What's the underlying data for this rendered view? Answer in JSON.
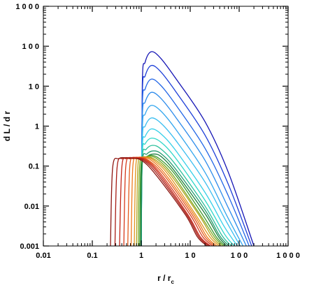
{
  "chart_data": {
    "type": "line",
    "xscale": "log",
    "yscale": "log",
    "xlim": [
      0.01,
      1000
    ],
    "ylim": [
      0.001,
      1000
    ],
    "xticks": [
      {
        "value": 0.01,
        "label": "0.01"
      },
      {
        "value": 0.1,
        "label": "0.1"
      },
      {
        "value": 1,
        "label": "1"
      },
      {
        "value": 10,
        "label": "1 0"
      },
      {
        "value": 100,
        "label": "1 0 0"
      },
      {
        "value": 1000,
        "label": "1 0 0 0"
      }
    ],
    "yticks": [
      {
        "value": 0.001,
        "label": "0.001"
      },
      {
        "value": 0.01,
        "label": "0.01"
      },
      {
        "value": 0.1,
        "label": "0.1"
      },
      {
        "value": 1,
        "label": "1"
      },
      {
        "value": 10,
        "label": "1 0"
      },
      {
        "value": 100,
        "label": "1 0 0"
      },
      {
        "value": 1000,
        "label": "1 0 0 0"
      }
    ],
    "xlabel": "r / r",
    "xlabel_subscript": "c",
    "ylabel": "d L / d r",
    "grid": false,
    "legend": "none",
    "series": [
      {
        "color": "#1515b5",
        "values": [
          [
            1.0,
            0.001
          ],
          [
            1.05,
            11.0
          ],
          [
            1.2,
            40.0
          ],
          [
            1.6,
            73.0
          ],
          [
            2.5,
            50.0
          ],
          [
            5,
            16.0
          ],
          [
            20,
            1.3
          ],
          [
            60,
            0.07
          ],
          [
            200,
            0.001
          ]
        ]
      },
      {
        "color": "#1c3ed8",
        "values": [
          [
            1.0,
            0.001
          ],
          [
            1.05,
            6.0
          ],
          [
            1.2,
            18.0
          ],
          [
            1.6,
            33.0
          ],
          [
            2.5,
            23.0
          ],
          [
            5,
            7.5
          ],
          [
            20,
            0.6
          ],
          [
            60,
            0.035
          ],
          [
            180,
            0.001
          ]
        ]
      },
      {
        "color": "#2266e6",
        "values": [
          [
            1.0,
            0.001
          ],
          [
            1.05,
            3.0
          ],
          [
            1.2,
            8.5
          ],
          [
            1.6,
            15.0
          ],
          [
            2.5,
            10.5
          ],
          [
            5,
            3.5
          ],
          [
            20,
            0.28
          ],
          [
            60,
            0.018
          ],
          [
            160,
            0.001
          ]
        ]
      },
      {
        "color": "#2b8aeb",
        "values": [
          [
            1.0,
            0.001
          ],
          [
            1.05,
            1.5
          ],
          [
            1.2,
            4.0
          ],
          [
            1.6,
            7.0
          ],
          [
            2.5,
            5.0
          ],
          [
            5,
            1.7
          ],
          [
            20,
            0.14
          ],
          [
            60,
            0.009
          ],
          [
            140,
            0.001
          ]
        ]
      },
      {
        "color": "#33a6ee",
        "values": [
          [
            1.0,
            0.001
          ],
          [
            1.05,
            0.8
          ],
          [
            1.2,
            2.0
          ],
          [
            1.6,
            3.3
          ],
          [
            2.5,
            2.4
          ],
          [
            5,
            0.85
          ],
          [
            20,
            0.07
          ],
          [
            55,
            0.006
          ],
          [
            120,
            0.001
          ]
        ]
      },
      {
        "color": "#38bdf0",
        "values": [
          [
            1.0,
            0.001
          ],
          [
            1.05,
            0.45
          ],
          [
            1.2,
            1.0
          ],
          [
            1.6,
            1.6
          ],
          [
            2.5,
            1.2
          ],
          [
            5,
            0.45
          ],
          [
            20,
            0.04
          ],
          [
            50,
            0.005
          ],
          [
            105,
            0.001
          ]
        ]
      },
      {
        "color": "#35cfe8",
        "values": [
          [
            1.0,
            0.001
          ],
          [
            1.05,
            0.28
          ],
          [
            1.2,
            0.55
          ],
          [
            1.6,
            0.85
          ],
          [
            2.5,
            0.65
          ],
          [
            5,
            0.25
          ],
          [
            20,
            0.022
          ],
          [
            50,
            0.003
          ],
          [
            92,
            0.001
          ]
        ]
      },
      {
        "color": "#2ed6c8",
        "values": [
          [
            1.0,
            0.001
          ],
          [
            1.05,
            0.2
          ],
          [
            1.2,
            0.36
          ],
          [
            1.6,
            0.5
          ],
          [
            2.5,
            0.4
          ],
          [
            5,
            0.16
          ],
          [
            20,
            0.014
          ],
          [
            50,
            0.002
          ],
          [
            80,
            0.001
          ]
        ]
      },
      {
        "color": "#2bbf9a",
        "values": [
          [
            1.0,
            0.001
          ],
          [
            1.05,
            0.15
          ],
          [
            1.25,
            0.26
          ],
          [
            1.7,
            0.33
          ],
          [
            2.5,
            0.27
          ],
          [
            5,
            0.11
          ],
          [
            20,
            0.01
          ],
          [
            45,
            0.0018
          ],
          [
            70,
            0.001
          ]
        ]
      },
      {
        "color": "#259c70",
        "values": [
          [
            1.0,
            0.001
          ],
          [
            1.05,
            0.12
          ],
          [
            1.3,
            0.2
          ],
          [
            1.8,
            0.24
          ],
          [
            2.6,
            0.2
          ],
          [
            5,
            0.085
          ],
          [
            20,
            0.008
          ],
          [
            40,
            0.0018
          ],
          [
            62,
            0.001
          ]
        ]
      },
      {
        "color": "#1e7f3e",
        "values": [
          [
            0.98,
            0.001
          ],
          [
            1.02,
            0.1
          ],
          [
            1.3,
            0.17
          ],
          [
            1.8,
            0.2
          ],
          [
            2.6,
            0.17
          ],
          [
            5,
            0.07
          ],
          [
            20,
            0.0065
          ],
          [
            38,
            0.0017
          ],
          [
            56,
            0.001
          ]
        ]
      },
      {
        "color": "#3d9a2e",
        "values": [
          [
            0.93,
            0.001
          ],
          [
            0.98,
            0.09
          ],
          [
            1.2,
            0.16
          ],
          [
            1.6,
            0.185
          ],
          [
            2.4,
            0.15
          ],
          [
            5,
            0.06
          ],
          [
            18,
            0.006
          ],
          [
            34,
            0.0017
          ],
          [
            51,
            0.001
          ]
        ]
      },
      {
        "color": "#7aa823",
        "values": [
          [
            0.87,
            0.001
          ],
          [
            0.92,
            0.09
          ],
          [
            1.1,
            0.155
          ],
          [
            1.5,
            0.175
          ],
          [
            2.2,
            0.145
          ],
          [
            4.5,
            0.058
          ],
          [
            16,
            0.006
          ],
          [
            31,
            0.0017
          ],
          [
            47,
            0.001
          ]
        ]
      },
      {
        "color": "#b3a51e",
        "values": [
          [
            0.8,
            0.001
          ],
          [
            0.85,
            0.09
          ],
          [
            1.0,
            0.155
          ],
          [
            1.3,
            0.17
          ],
          [
            2.0,
            0.14
          ],
          [
            4,
            0.06
          ],
          [
            15,
            0.006
          ],
          [
            28,
            0.0017
          ],
          [
            43,
            0.001
          ]
        ]
      },
      {
        "color": "#e0951c",
        "values": [
          [
            0.72,
            0.001
          ],
          [
            0.77,
            0.09
          ],
          [
            0.9,
            0.155
          ],
          [
            1.2,
            0.168
          ],
          [
            1.8,
            0.14
          ],
          [
            3.6,
            0.06
          ],
          [
            13,
            0.006
          ],
          [
            25,
            0.0017
          ],
          [
            39,
            0.001
          ]
        ]
      },
      {
        "color": "#ee7a1c",
        "values": [
          [
            0.62,
            0.001
          ],
          [
            0.67,
            0.09
          ],
          [
            0.8,
            0.155
          ],
          [
            1.05,
            0.166
          ],
          [
            1.6,
            0.14
          ],
          [
            3.2,
            0.06
          ],
          [
            12,
            0.006
          ],
          [
            22,
            0.0017
          ],
          [
            35,
            0.001
          ]
        ]
      },
      {
        "color": "#e55a1c",
        "values": [
          [
            0.53,
            0.001
          ],
          [
            0.58,
            0.09
          ],
          [
            0.7,
            0.155
          ],
          [
            0.95,
            0.164
          ],
          [
            1.4,
            0.14
          ],
          [
            2.9,
            0.06
          ],
          [
            11,
            0.006
          ],
          [
            20,
            0.0017
          ],
          [
            32,
            0.001
          ]
        ]
      },
      {
        "color": "#d63a1c",
        "values": [
          [
            0.44,
            0.001
          ],
          [
            0.48,
            0.09
          ],
          [
            0.6,
            0.155
          ],
          [
            0.85,
            0.162
          ],
          [
            1.3,
            0.14
          ],
          [
            2.6,
            0.06
          ],
          [
            10,
            0.006
          ],
          [
            18,
            0.0017
          ],
          [
            29,
            0.001
          ]
        ]
      },
      {
        "color": "#c22418",
        "values": [
          [
            0.36,
            0.001
          ],
          [
            0.4,
            0.09
          ],
          [
            0.5,
            0.155
          ],
          [
            0.75,
            0.16
          ],
          [
            1.2,
            0.14
          ],
          [
            2.4,
            0.06
          ],
          [
            9,
            0.006
          ],
          [
            16,
            0.0017
          ],
          [
            26,
            0.001
          ]
        ]
      },
      {
        "color": "#a81c14",
        "values": [
          [
            0.29,
            0.001
          ],
          [
            0.32,
            0.09
          ],
          [
            0.42,
            0.155
          ],
          [
            0.65,
            0.158
          ],
          [
            1.1,
            0.14
          ],
          [
            2.2,
            0.06
          ],
          [
            8.5,
            0.006
          ],
          [
            15,
            0.0017
          ],
          [
            24,
            0.001
          ]
        ]
      },
      {
        "color": "#8c1510",
        "values": [
          [
            0.235,
            0.001
          ],
          [
            0.26,
            0.09
          ],
          [
            0.35,
            0.155
          ],
          [
            0.55,
            0.157
          ],
          [
            1.0,
            0.14
          ],
          [
            2.0,
            0.06
          ],
          [
            8,
            0.006
          ],
          [
            14,
            0.0017
          ],
          [
            22,
            0.001
          ]
        ]
      }
    ]
  }
}
